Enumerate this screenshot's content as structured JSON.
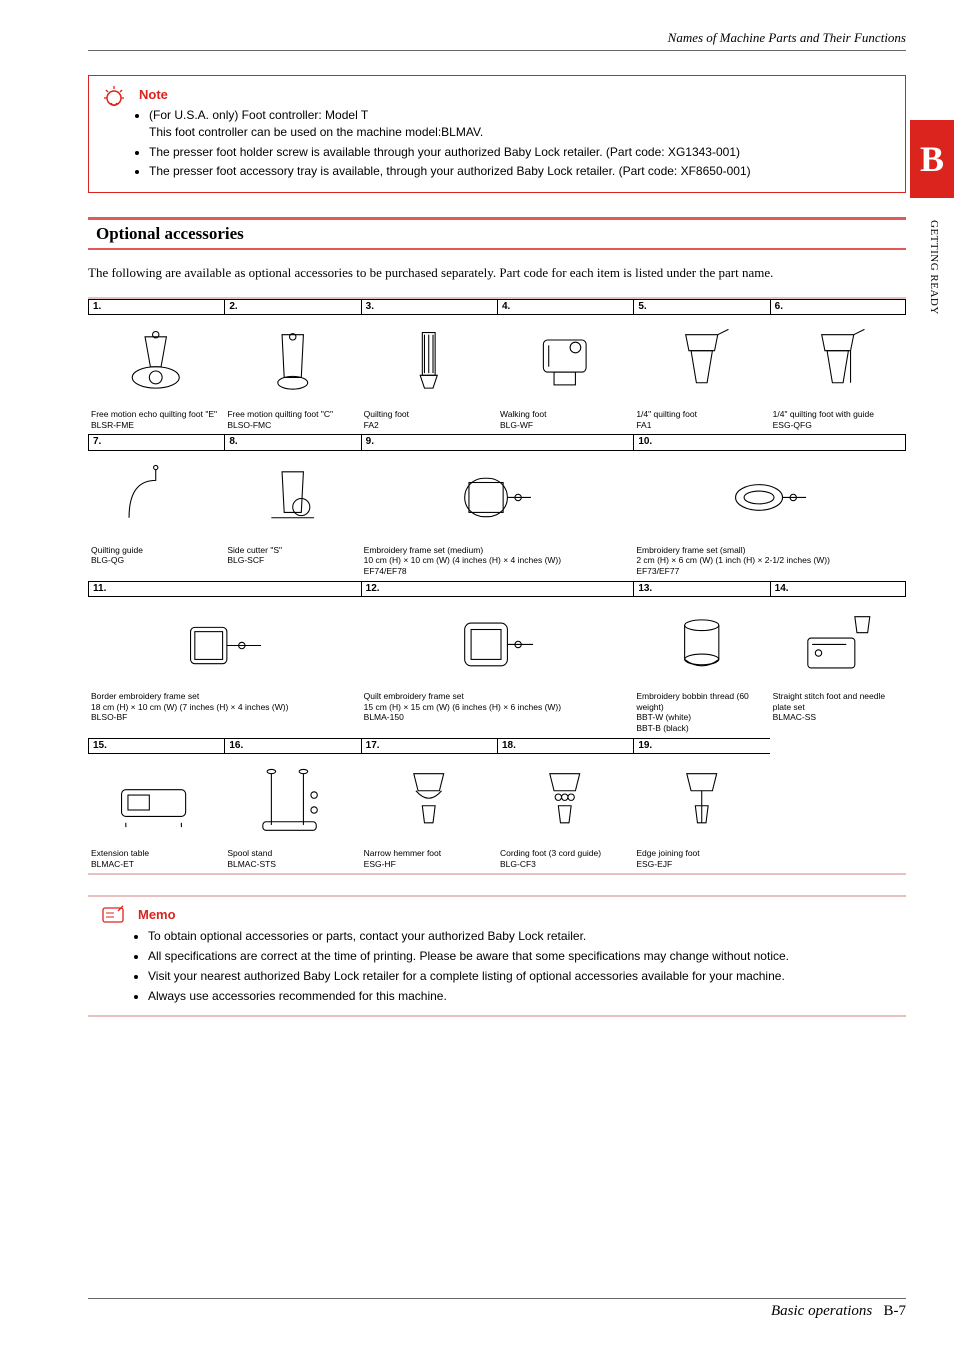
{
  "header": {
    "text": "Names of Machine Parts and Their Functions"
  },
  "side_tab": {
    "letter": "B",
    "label": "GETTING READY",
    "bg": "#dc241f"
  },
  "note": {
    "title": "Note",
    "items": [
      "(For U.S.A. only) Foot controller: Model T\nThis foot controller can be used on the machine model:BLMAV.",
      "The presser foot holder screw is available through your authorized Baby Lock retailer. (Part code: XG1343-001)",
      "The presser foot accessory tray is available, through your authorized Baby Lock retailer. (Part code: XF8650-001)"
    ]
  },
  "section": {
    "title": "Optional accessories",
    "intro": "The following are available as optional accessories to be purchased separately. Part code for each item is listed under the part name.",
    "accent_color": "#e05a5a",
    "rule_color": "#e8c0c0"
  },
  "rows": [
    {
      "cells": [
        {
          "num": "1.",
          "name": "Free motion echo quilting foot \"E\"",
          "code": "BLSR-FME",
          "span": 1
        },
        {
          "num": "2.",
          "name": "Free motion quilting foot \"C\"",
          "code": "BLSO-FMC",
          "span": 1
        },
        {
          "num": "3.",
          "name": "Quilting foot",
          "code": "FA2",
          "span": 1
        },
        {
          "num": "4.",
          "name": "Walking foot",
          "code": "BLG-WF",
          "span": 1
        },
        {
          "num": "5.",
          "name": "1/4\" quilting foot",
          "code": "FA1",
          "span": 1
        },
        {
          "num": "6.",
          "name": "1/4\" quilting foot with guide",
          "code": "ESG-QFG",
          "span": 1
        }
      ]
    },
    {
      "cells": [
        {
          "num": "7.",
          "name": "Quilting guide",
          "code": "BLG-QG",
          "span": 1
        },
        {
          "num": "8.",
          "name": "Side cutter \"S\"",
          "code": "BLG-SCF",
          "span": 1
        },
        {
          "num": "9.",
          "name": "Embroidery frame set (medium)\n10 cm (H) × 10 cm (W) (4 inches (H) × 4 inches (W))",
          "code": "EF74/EF78",
          "span": 2
        },
        {
          "num": "10.",
          "name": "Embroidery frame set (small)\n2 cm (H) × 6 cm (W) (1 inch (H) × 2-1/2 inches (W))",
          "code": "EF73/EF77",
          "span": 2
        }
      ]
    },
    {
      "cells": [
        {
          "num": "11.",
          "name": "Border embroidery frame set\n18 cm (H) × 10 cm (W) (7 inches (H) × 4 inches (W))",
          "code": "BLSO-BF",
          "span": 2
        },
        {
          "num": "12.",
          "name": "Quilt embroidery frame set\n15 cm (H) × 15 cm (W) (6 inches (H) × 6 inches (W))",
          "code": "BLMA-150",
          "span": 2
        },
        {
          "num": "13.",
          "name": "Embroidery bobbin thread (60 weight)",
          "code": "BBT-W (white)\nBBT-B (black)",
          "span": 1
        },
        {
          "num": "14.",
          "name": "Straight stitch foot and needle plate set",
          "code": "BLMAC-SS",
          "span": 1
        }
      ]
    },
    {
      "cells": [
        {
          "num": "15.",
          "name": "Extension table",
          "code": "BLMAC-ET",
          "span": 1
        },
        {
          "num": "16.",
          "name": "Spool stand",
          "code": "BLMAC-STS",
          "span": 1
        },
        {
          "num": "17.",
          "name": "Narrow hemmer foot",
          "code": "ESG-HF",
          "span": 1
        },
        {
          "num": "18.",
          "name": "Cording foot (3 cord guide)",
          "code": "BLG-CF3",
          "span": 1
        },
        {
          "num": "19.",
          "name": "Edge joining foot",
          "code": "ESG-EJF",
          "span": 1
        },
        {
          "num": "",
          "name": "",
          "code": "",
          "span": 1
        }
      ]
    }
  ],
  "memo": {
    "title": "Memo",
    "items": [
      "To obtain optional accessories or parts, contact your authorized Baby Lock retailer.",
      "All specifications are correct at the time of printing. Please be aware that some specifications may change without notice.",
      "Visit your nearest authorized Baby Lock retailer for a complete listing of optional accessories available for your machine.",
      "Always use accessories recommended for this machine."
    ]
  },
  "footer": {
    "text": "Basic operations",
    "page": "B-7"
  }
}
